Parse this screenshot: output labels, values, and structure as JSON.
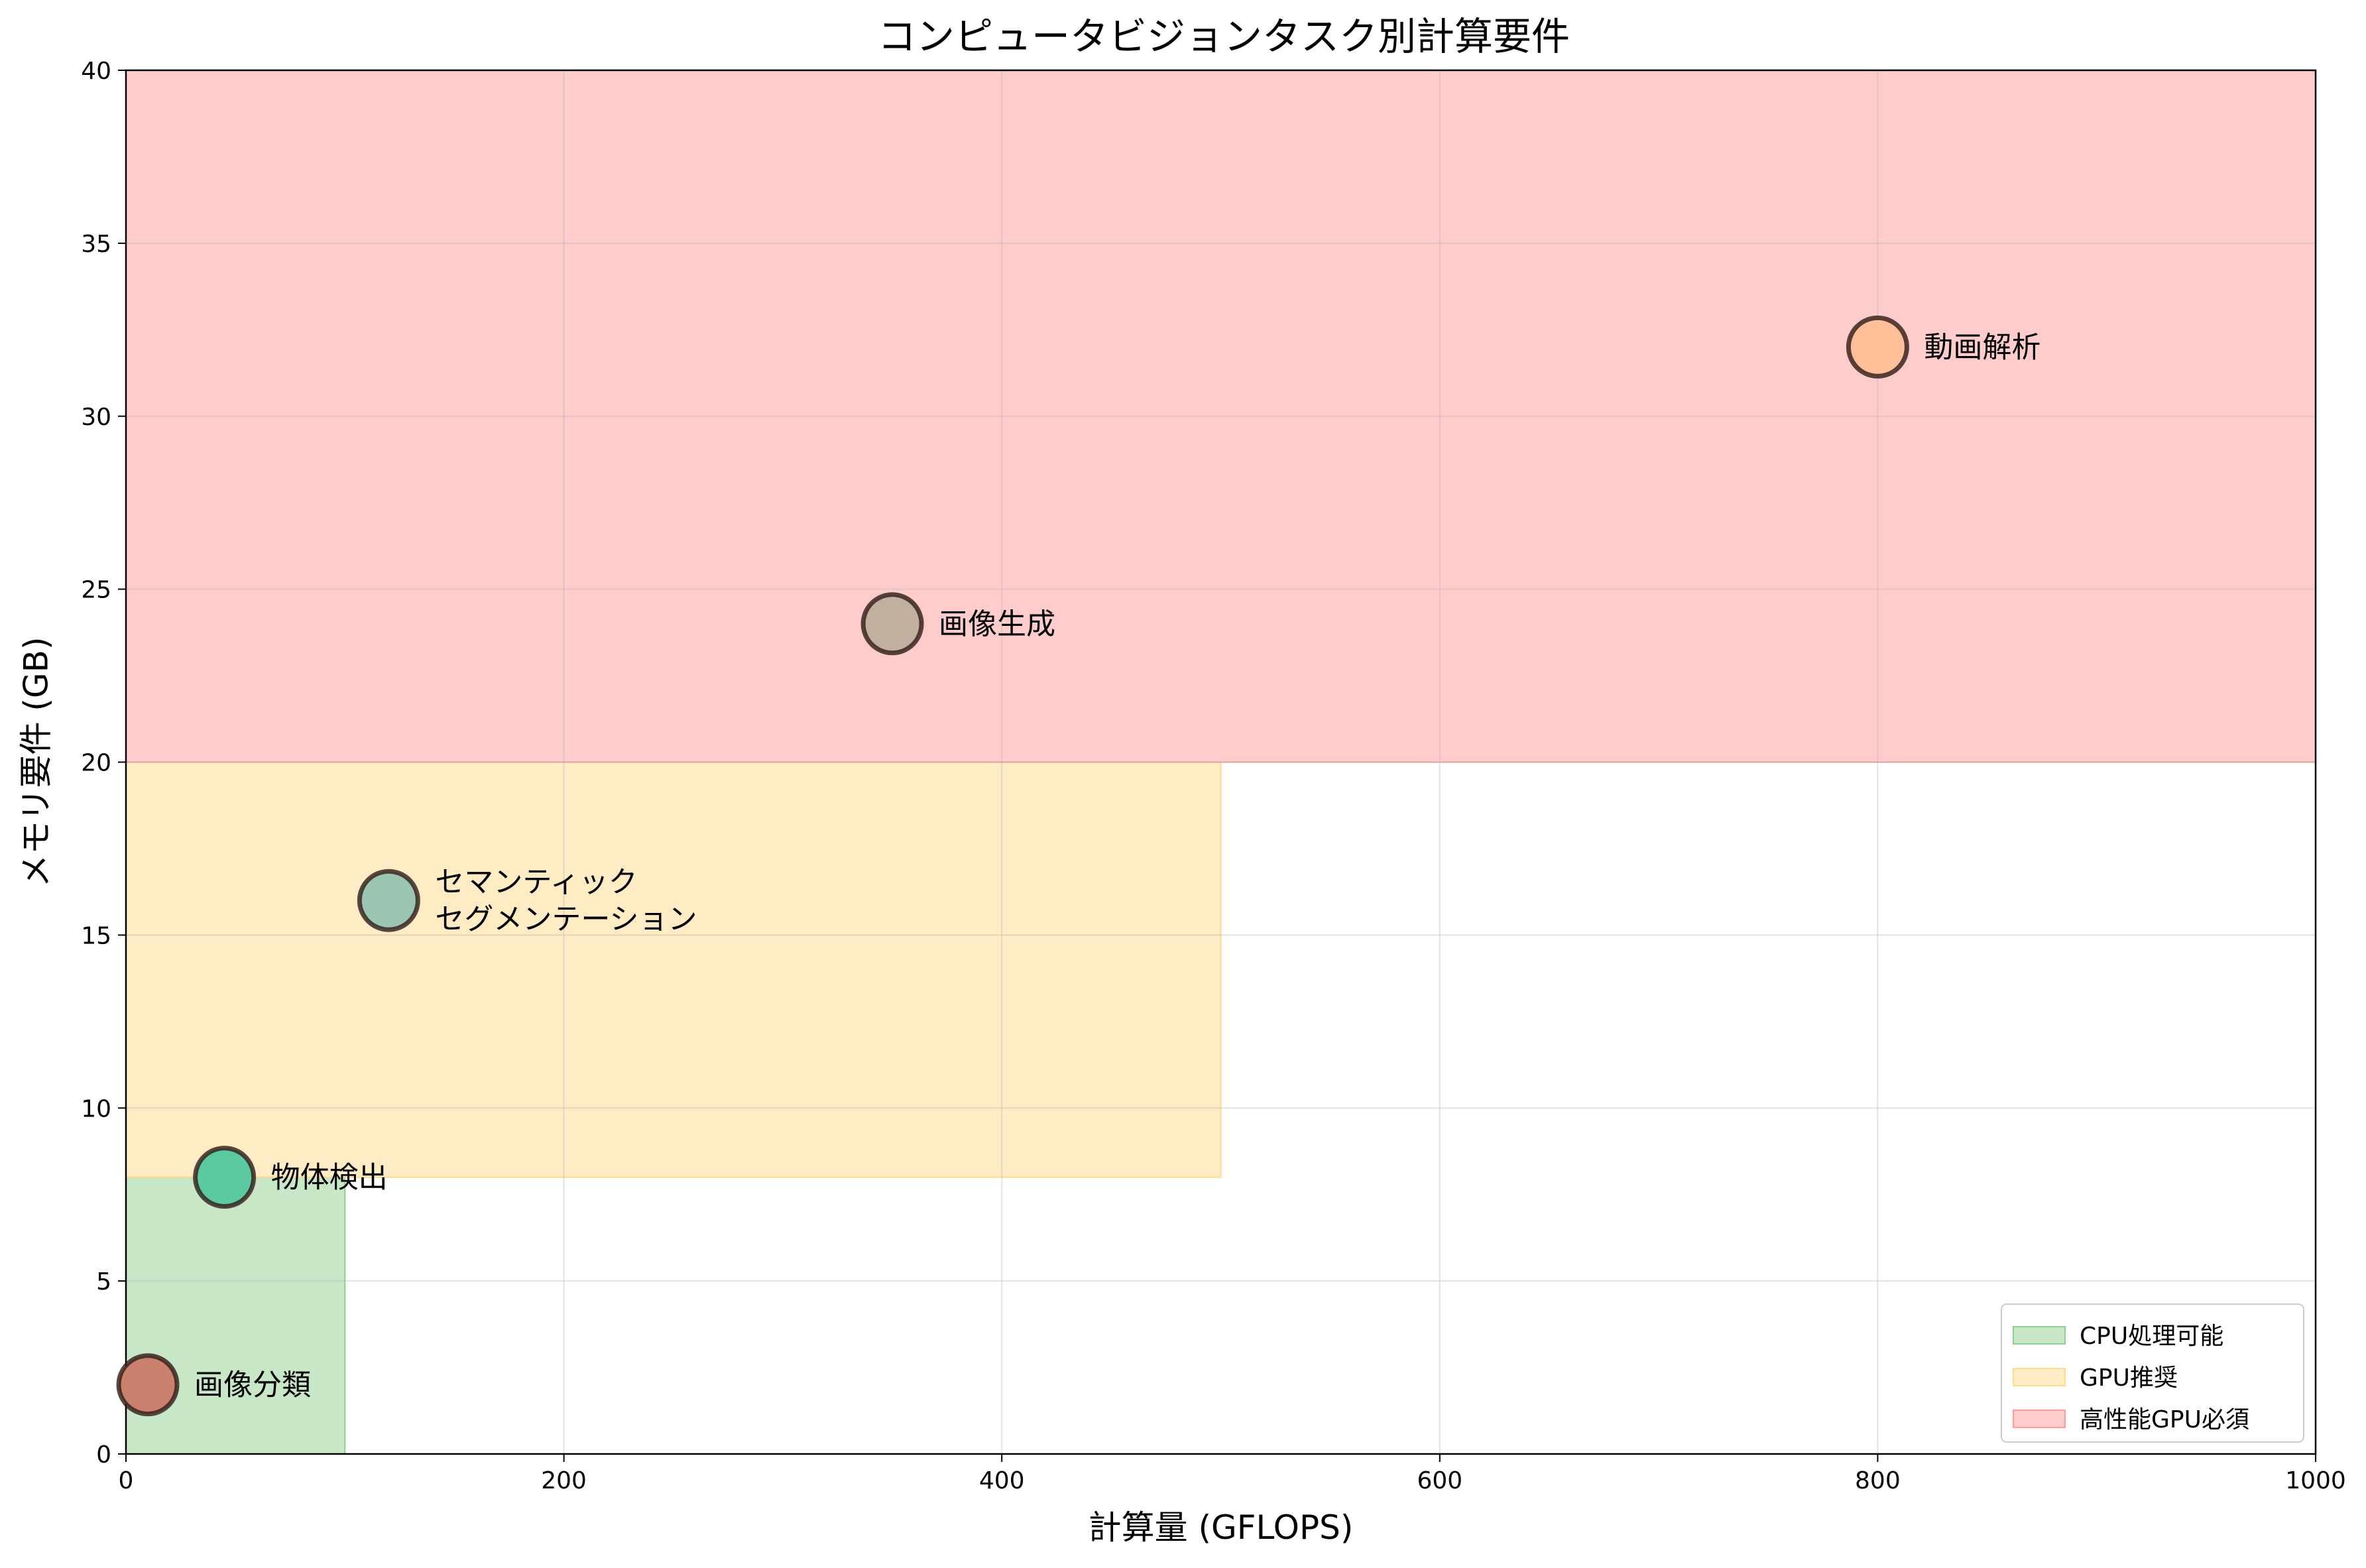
{
  "chart_data": {
    "type": "scatter",
    "title": "コンピュータビジョンタスク別計算要件",
    "xlabel": "計算量 (GFLOPS)",
    "ylabel": "メモリ要件 (GB)",
    "xlim": [
      0,
      1000
    ],
    "ylim": [
      0,
      40
    ],
    "xticks": [
      0,
      200,
      400,
      600,
      800,
      1000
    ],
    "yticks": [
      0,
      5,
      10,
      15,
      20,
      25,
      30,
      35,
      40
    ],
    "grid": true,
    "legend_position": "bottom-right",
    "regions": [
      {
        "name": "CPU処理可能",
        "x": [
          0,
          100
        ],
        "y": [
          0,
          8
        ],
        "color": "#8fcf8f"
      },
      {
        "name": "GPU推奨",
        "x": [
          0,
          500
        ],
        "y": [
          8,
          20
        ],
        "color": "#ffd98c"
      },
      {
        "name": "高性能GPU必須",
        "x": [
          0,
          1000
        ],
        "y": [
          20,
          40
        ],
        "color": "#ff9999"
      }
    ],
    "points": [
      {
        "label": [
          "画像分類"
        ],
        "x": 10,
        "y": 2,
        "color": "#c9816e"
      },
      {
        "label": [
          "物体検出"
        ],
        "x": 45,
        "y": 8,
        "color": "#5ccaa0"
      },
      {
        "label": [
          "セマンティック",
          "セグメンテーション"
        ],
        "x": 120,
        "y": 16,
        "color": "#9ac6b2"
      },
      {
        "label": [
          "画像生成"
        ],
        "x": 350,
        "y": 24,
        "color": "#c1b09f"
      },
      {
        "label": [
          "動画解析"
        ],
        "x": 800,
        "y": 32,
        "color": "#ffbf99"
      }
    ]
  }
}
